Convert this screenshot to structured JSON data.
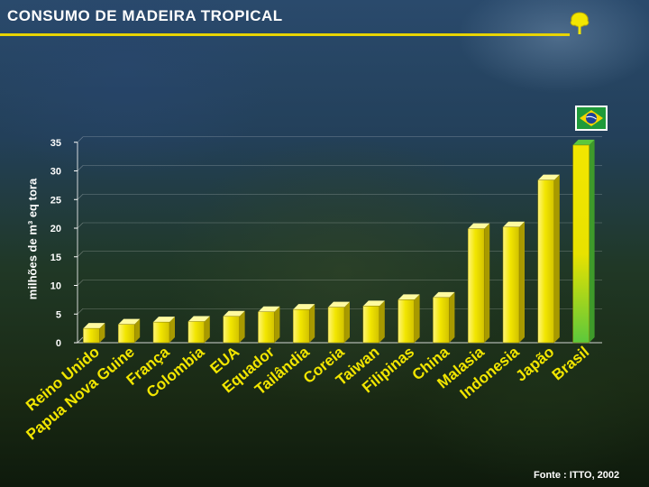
{
  "title": "CONSUMO DE MADEIRA TROPICAL",
  "source": "Fonte : ITTO, 2002",
  "colors": {
    "bar": "#f2e600",
    "highlight_top": "#5cc83c",
    "title_rule": "#e8d400"
  },
  "icons": {
    "logo": "tree-icon",
    "flag": "brazil-flag-icon"
  },
  "chart_data": {
    "type": "bar",
    "title": "",
    "xlabel": "",
    "ylabel": "milhões de m³ eq tora",
    "ylim": [
      0,
      35
    ],
    "yticks": [
      "0",
      "5",
      "10",
      "15",
      "20",
      "25",
      "30",
      "35"
    ],
    "categories": [
      "Reino Unido",
      "Papua Nova Guiné",
      "França",
      "Colombia",
      "EUA",
      "Equador",
      "Tailândia",
      "Coreia",
      "Taiwan",
      "Filipinas",
      "China",
      "Malasia",
      "Indonésia",
      "Japão",
      "Brasil"
    ],
    "values": [
      2.5,
      3.2,
      3.6,
      3.7,
      4.6,
      5.4,
      5.8,
      6.2,
      6.4,
      7.5,
      7.9,
      19.9,
      20.2,
      28.4,
      34.5
    ],
    "tick_labels": [
      "Reino Unido",
      "Papua Nova Guine",
      "França",
      "Colombia",
      "EUA",
      "Equador",
      "Tailândia",
      "Coreia",
      "Taiwan",
      "Filipinas",
      "China",
      "Malasia",
      "Indonesia",
      "Japão",
      "Brasil"
    ],
    "grid": true,
    "legend": "none",
    "highlight_category": "Brasil"
  }
}
